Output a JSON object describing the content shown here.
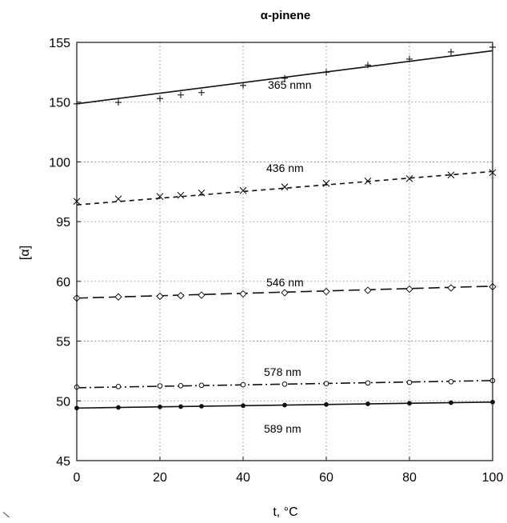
{
  "chart_data": {
    "type": "line",
    "title": "α-pinene",
    "xlabel": "t, °C",
    "ylabel": "[α]",
    "xlim": [
      0,
      100
    ],
    "ylim": [
      45,
      155
    ],
    "x_ticks": [
      0,
      20,
      40,
      60,
      80,
      100
    ],
    "y_ticks": [
      45,
      50,
      55,
      60,
      95,
      100,
      150,
      155
    ],
    "y_axis_note": "broken scale: tick labels are evenly spaced",
    "grid": true,
    "series": [
      {
        "name": "365 nmn",
        "line_style": "solid",
        "marker": "plus",
        "color": "#111111",
        "fit": [
          [
            0,
            148.6
          ],
          [
            100,
            154.3
          ]
        ],
        "x": [
          0,
          10,
          20,
          25,
          30,
          40,
          50,
          60,
          70,
          80,
          90,
          100
        ],
        "y": [
          148.6,
          149.8,
          150.3,
          150.6,
          150.8,
          151.4,
          152.0,
          152.5,
          153.1,
          153.6,
          154.2,
          154.6
        ]
      },
      {
        "name": "436 nm",
        "line_style": "dashed",
        "marker": "x",
        "color": "#111111",
        "fit": [
          [
            0,
            96.4
          ],
          [
            100,
            99.2
          ]
        ],
        "x": [
          0,
          10,
          20,
          25,
          30,
          40,
          50,
          60,
          70,
          80,
          90,
          100
        ],
        "y": [
          96.7,
          96.9,
          97.1,
          97.2,
          97.4,
          97.6,
          97.9,
          98.2,
          98.4,
          98.6,
          98.9,
          99.1
        ]
      },
      {
        "name": "546 nm",
        "line_style": "long-dashed",
        "marker": "diamond",
        "color": "#111111",
        "fit": [
          [
            0,
            58.6
          ],
          [
            100,
            59.6
          ]
        ],
        "x": [
          0,
          10,
          20,
          25,
          30,
          40,
          50,
          60,
          70,
          80,
          90,
          100
        ],
        "y": [
          58.6,
          58.7,
          58.75,
          58.8,
          58.85,
          58.95,
          59.05,
          59.15,
          59.25,
          59.35,
          59.45,
          59.55
        ]
      },
      {
        "name": "578 nm",
        "line_style": "dash-dot",
        "marker": "open-circle",
        "color": "#111111",
        "fit": [
          [
            0,
            51.1
          ],
          [
            100,
            51.7
          ]
        ],
        "x": [
          0,
          10,
          20,
          25,
          30,
          40,
          50,
          60,
          70,
          80,
          90,
          100
        ],
        "y": [
          51.15,
          51.2,
          51.25,
          51.27,
          51.3,
          51.35,
          51.4,
          51.45,
          51.5,
          51.55,
          51.6,
          51.7
        ]
      },
      {
        "name": "589 nm",
        "line_style": "solid",
        "marker": "filled-circle",
        "color": "#111111",
        "fit": [
          [
            0,
            49.4
          ],
          [
            100,
            49.9
          ]
        ],
        "x": [
          0,
          10,
          20,
          25,
          30,
          40,
          50,
          60,
          70,
          80,
          90,
          100
        ],
        "y": [
          49.4,
          49.45,
          49.5,
          49.52,
          49.55,
          49.6,
          49.65,
          49.7,
          49.75,
          49.8,
          49.85,
          49.9
        ]
      }
    ]
  }
}
